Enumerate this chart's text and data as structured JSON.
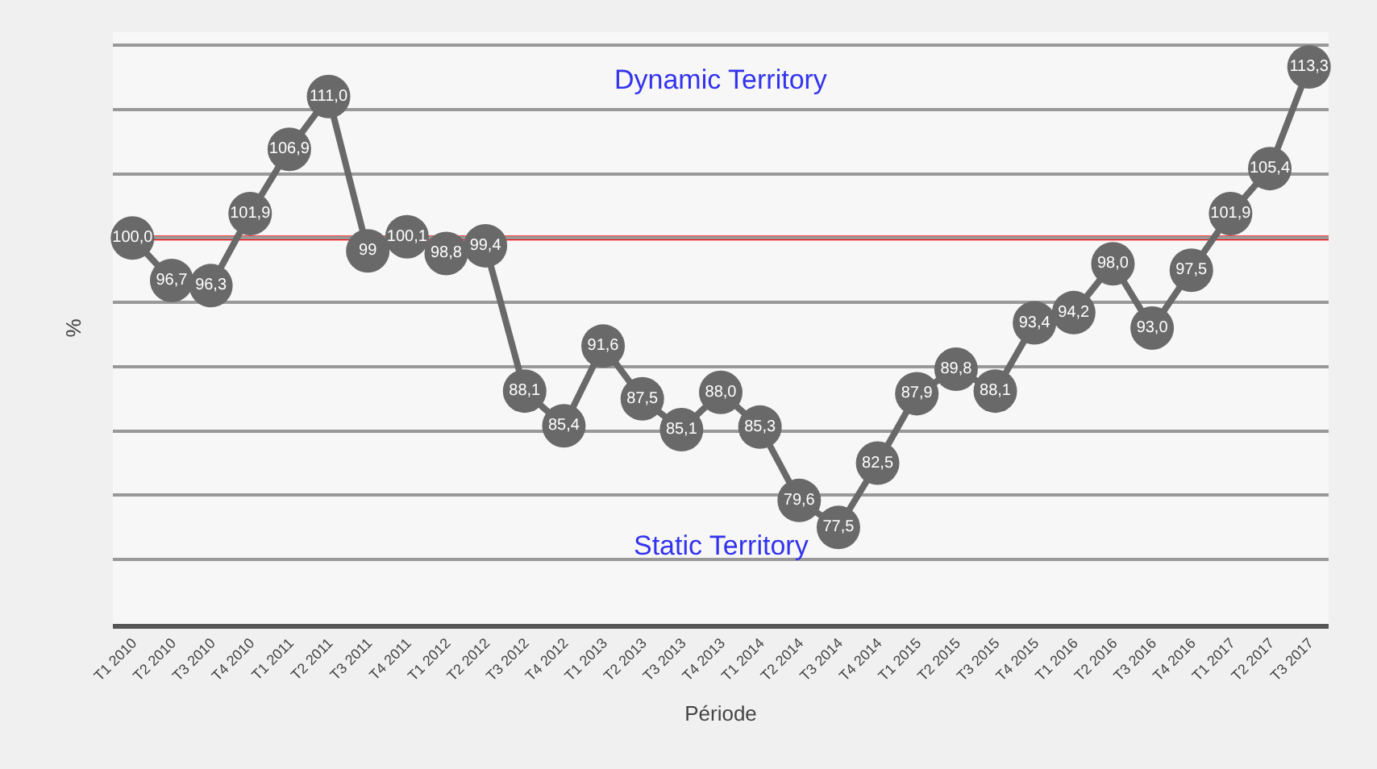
{
  "chart_data": {
    "type": "line",
    "categories": [
      "T1 2010",
      "T2 2010",
      "T3 2010",
      "T4 2010",
      "T1 2011",
      "T2 2011",
      "T3 2011",
      "T4 2011",
      "T1 2012",
      "T2 2012",
      "T3 2012",
      "T4 2012",
      "T1 2013",
      "T2 2013",
      "T3 2013",
      "T4 2013",
      "T1 2014",
      "T2 2014",
      "T3 2014",
      "T4 2014",
      "T1 2015",
      "T2 2015",
      "T3 2015",
      "T4 2015",
      "T1 2016",
      "T2 2016",
      "T3 2016",
      "T4 2016",
      "T1 2017",
      "T2 2017",
      "T3 2017"
    ],
    "series": [
      {
        "color": "#696969",
        "values": [
          100.0,
          96.7,
          96.3,
          101.9,
          106.9,
          111.0,
          99,
          100.1,
          98.8,
          99.4,
          88.1,
          85.4,
          91.6,
          87.5,
          85.1,
          88.0,
          85.3,
          79.6,
          77.5,
          82.5,
          87.9,
          89.8,
          88.1,
          93.4,
          94.2,
          98.0,
          93.0,
          97.5,
          101.9,
          105.4,
          113.3
        ],
        "value_labels": [
          "100,0",
          "96,7",
          "96,3",
          "101,9",
          "106,9",
          "111,0",
          "99",
          "100,1",
          "98,8",
          "99,4",
          "88,1",
          "85,4",
          "91,6",
          "87,5",
          "85,1",
          "88,0",
          "85,3",
          "79,6",
          "77,5",
          "82,5",
          "87,9",
          "89,8",
          "88,1",
          "93,4",
          "94,2",
          "98,0",
          "93,0",
          "97,5",
          "101,9",
          "105,4",
          "113,3"
        ]
      }
    ],
    "xlabel": "Période",
    "ylabel": "%",
    "annotations": [
      "Dynamic Territory",
      "Static Territory"
    ],
    "ref_lines": [
      {
        "axis": "y",
        "value": 100,
        "color": "#ff0000"
      }
    ],
    "ylim": [
      70,
      116
    ],
    "yticks": [
      {
        "value": 70,
        "label": null
      },
      {
        "value": 75,
        "label": null
      },
      {
        "value": 80,
        "label": null
      },
      {
        "value": 85,
        "label": null
      },
      {
        "value": 90,
        "label": null
      },
      {
        "value": 95,
        "label": null
      },
      {
        "value": 100,
        "label": null
      },
      {
        "value": 105,
        "label": null
      },
      {
        "value": 110,
        "label": null
      },
      {
        "value": 115,
        "label": null
      }
    ],
    "grid": "y",
    "tick_labels": "x",
    "marker": "circle",
    "line_style": "solid",
    "legend": false
  }
}
